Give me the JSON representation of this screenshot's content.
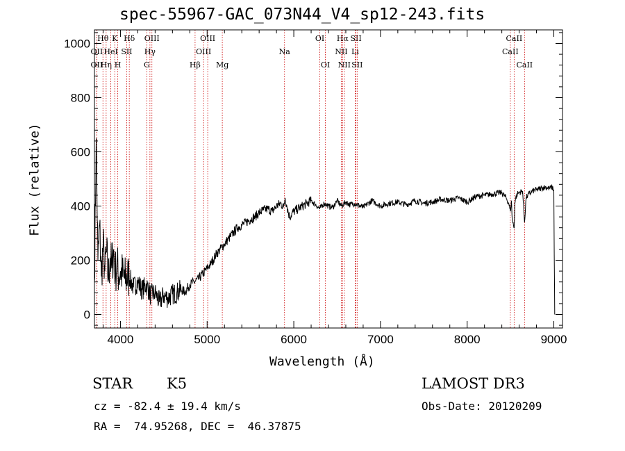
{
  "chart_data": {
    "type": "line",
    "title": "spec-55967-GAC_073N44_V4_sp12-243.fits",
    "xlabel": "Wavelength (Å)",
    "ylabel": "Flux (relative)",
    "xlim": [
      3700,
      9100
    ],
    "ylim": [
      -50,
      1050
    ],
    "x_ticks": [
      4000,
      5000,
      6000,
      7000,
      8000,
      9000
    ],
    "y_ticks": [
      0,
      200,
      400,
      600,
      800,
      1000
    ],
    "grid": false,
    "series": [
      {
        "name": "flux",
        "x": [
          3700,
          3720,
          3740,
          3760,
          3780,
          3800,
          3820,
          3840,
          3860,
          3880,
          3900,
          3920,
          3940,
          3960,
          3980,
          4000,
          4050,
          4100,
          4150,
          4200,
          4250,
          4300,
          4350,
          4400,
          4450,
          4500,
          4550,
          4600,
          4650,
          4700,
          4750,
          4800,
          4850,
          4900,
          4950,
          5000,
          5050,
          5100,
          5150,
          5200,
          5250,
          5300,
          5350,
          5400,
          5450,
          5500,
          5550,
          5600,
          5650,
          5700,
          5750,
          5800,
          5850,
          5880,
          5900,
          5920,
          5950,
          6000,
          6050,
          6100,
          6150,
          6200,
          6250,
          6300,
          6350,
          6400,
          6450,
          6500,
          6550,
          6600,
          6650,
          6700,
          6800,
          6900,
          7000,
          7100,
          7200,
          7300,
          7400,
          7500,
          7600,
          7700,
          7800,
          7900,
          8000,
          8100,
          8200,
          8300,
          8400,
          8450,
          8480,
          8498,
          8510,
          8520,
          8542,
          8550,
          8560,
          8580,
          8600,
          8640,
          8662,
          8680,
          8700,
          8750,
          8800,
          8850,
          8900,
          8950,
          8980,
          9000,
          9005,
          9010
        ],
        "y": [
          120,
          650,
          200,
          330,
          140,
          260,
          160,
          230,
          130,
          210,
          170,
          240,
          150,
          190,
          140,
          160,
          130,
          140,
          100,
          120,
          90,
          110,
          70,
          80,
          45,
          70,
          60,
          75,
          80,
          90,
          85,
          110,
          120,
          130,
          150,
          170,
          190,
          220,
          240,
          260,
          280,
          300,
          320,
          330,
          340,
          350,
          360,
          375,
          385,
          390,
          380,
          400,
          410,
          395,
          430,
          400,
          360,
          380,
          390,
          400,
          410,
          420,
          405,
          390,
          410,
          400,
          395,
          420,
          400,
          415,
          405,
          410,
          395,
          420,
          400,
          410,
          415,
          405,
          420,
          410,
          415,
          425,
          420,
          430,
          415,
          435,
          440,
          445,
          450,
          430,
          410,
          380,
          420,
          350,
          320,
          410,
          430,
          445,
          450,
          455,
          340,
          430,
          440,
          455,
          460,
          465,
          470,
          465,
          470,
          460,
          220,
          0
        ]
      }
    ],
    "lines": [
      {
        "label": "Hθ",
        "wave": 3798,
        "row": 1
      },
      {
        "label": "OII",
        "wave": 3727,
        "row": 2
      },
      {
        "label": "OII",
        "wave": 3727,
        "row": 3
      },
      {
        "label": "Hη",
        "wave": 3835,
        "row": 3
      },
      {
        "label": "HeI",
        "wave": 3889,
        "row": 2
      },
      {
        "label": "K",
        "wave": 3934,
        "row": 1
      },
      {
        "label": "H",
        "wave": 3969,
        "row": 3
      },
      {
        "label": "SII",
        "wave": 4072,
        "row": 2
      },
      {
        "label": "Hδ",
        "wave": 4102,
        "row": 1
      },
      {
        "label": "OIII",
        "wave": 4363,
        "row": 1
      },
      {
        "label": "Hγ",
        "wave": 4340,
        "row": 2
      },
      {
        "label": "G",
        "wave": 4304,
        "row": 3
      },
      {
        "label": "Hβ",
        "wave": 4861,
        "row": 3
      },
      {
        "label": "OIII",
        "wave": 5007,
        "row": 1
      },
      {
        "label": "OIII",
        "wave": 4959,
        "row": 2
      },
      {
        "label": "Mg",
        "wave": 5175,
        "row": 3
      },
      {
        "label": "Na",
        "wave": 5893,
        "row": 2
      },
      {
        "label": "OI",
        "wave": 6300,
        "row": 1
      },
      {
        "label": "OI",
        "wave": 6364,
        "row": 3
      },
      {
        "label": "Hα",
        "wave": 6563,
        "row": 1
      },
      {
        "label": "NII",
        "wave": 6548,
        "row": 2
      },
      {
        "label": "NII",
        "wave": 6583,
        "row": 3
      },
      {
        "label": "SII",
        "wave": 6717,
        "row": 1
      },
      {
        "label": "Li",
        "wave": 6708,
        "row": 2
      },
      {
        "label": "SII",
        "wave": 6731,
        "row": 3
      },
      {
        "label": "CaII",
        "wave": 8542,
        "row": 1
      },
      {
        "label": "CaII",
        "wave": 8498,
        "row": 2
      },
      {
        "label": "CaII",
        "wave": 8662,
        "row": 3
      }
    ]
  },
  "info": {
    "class": "STAR",
    "subclass": "K5",
    "survey": "LAMOST DR3",
    "cz": "cz = -82.4 ± 19.4 km/s",
    "obs_date": "Obs-Date: 20120209",
    "radec": "RA =  74.95268, DEC =  46.37875"
  }
}
